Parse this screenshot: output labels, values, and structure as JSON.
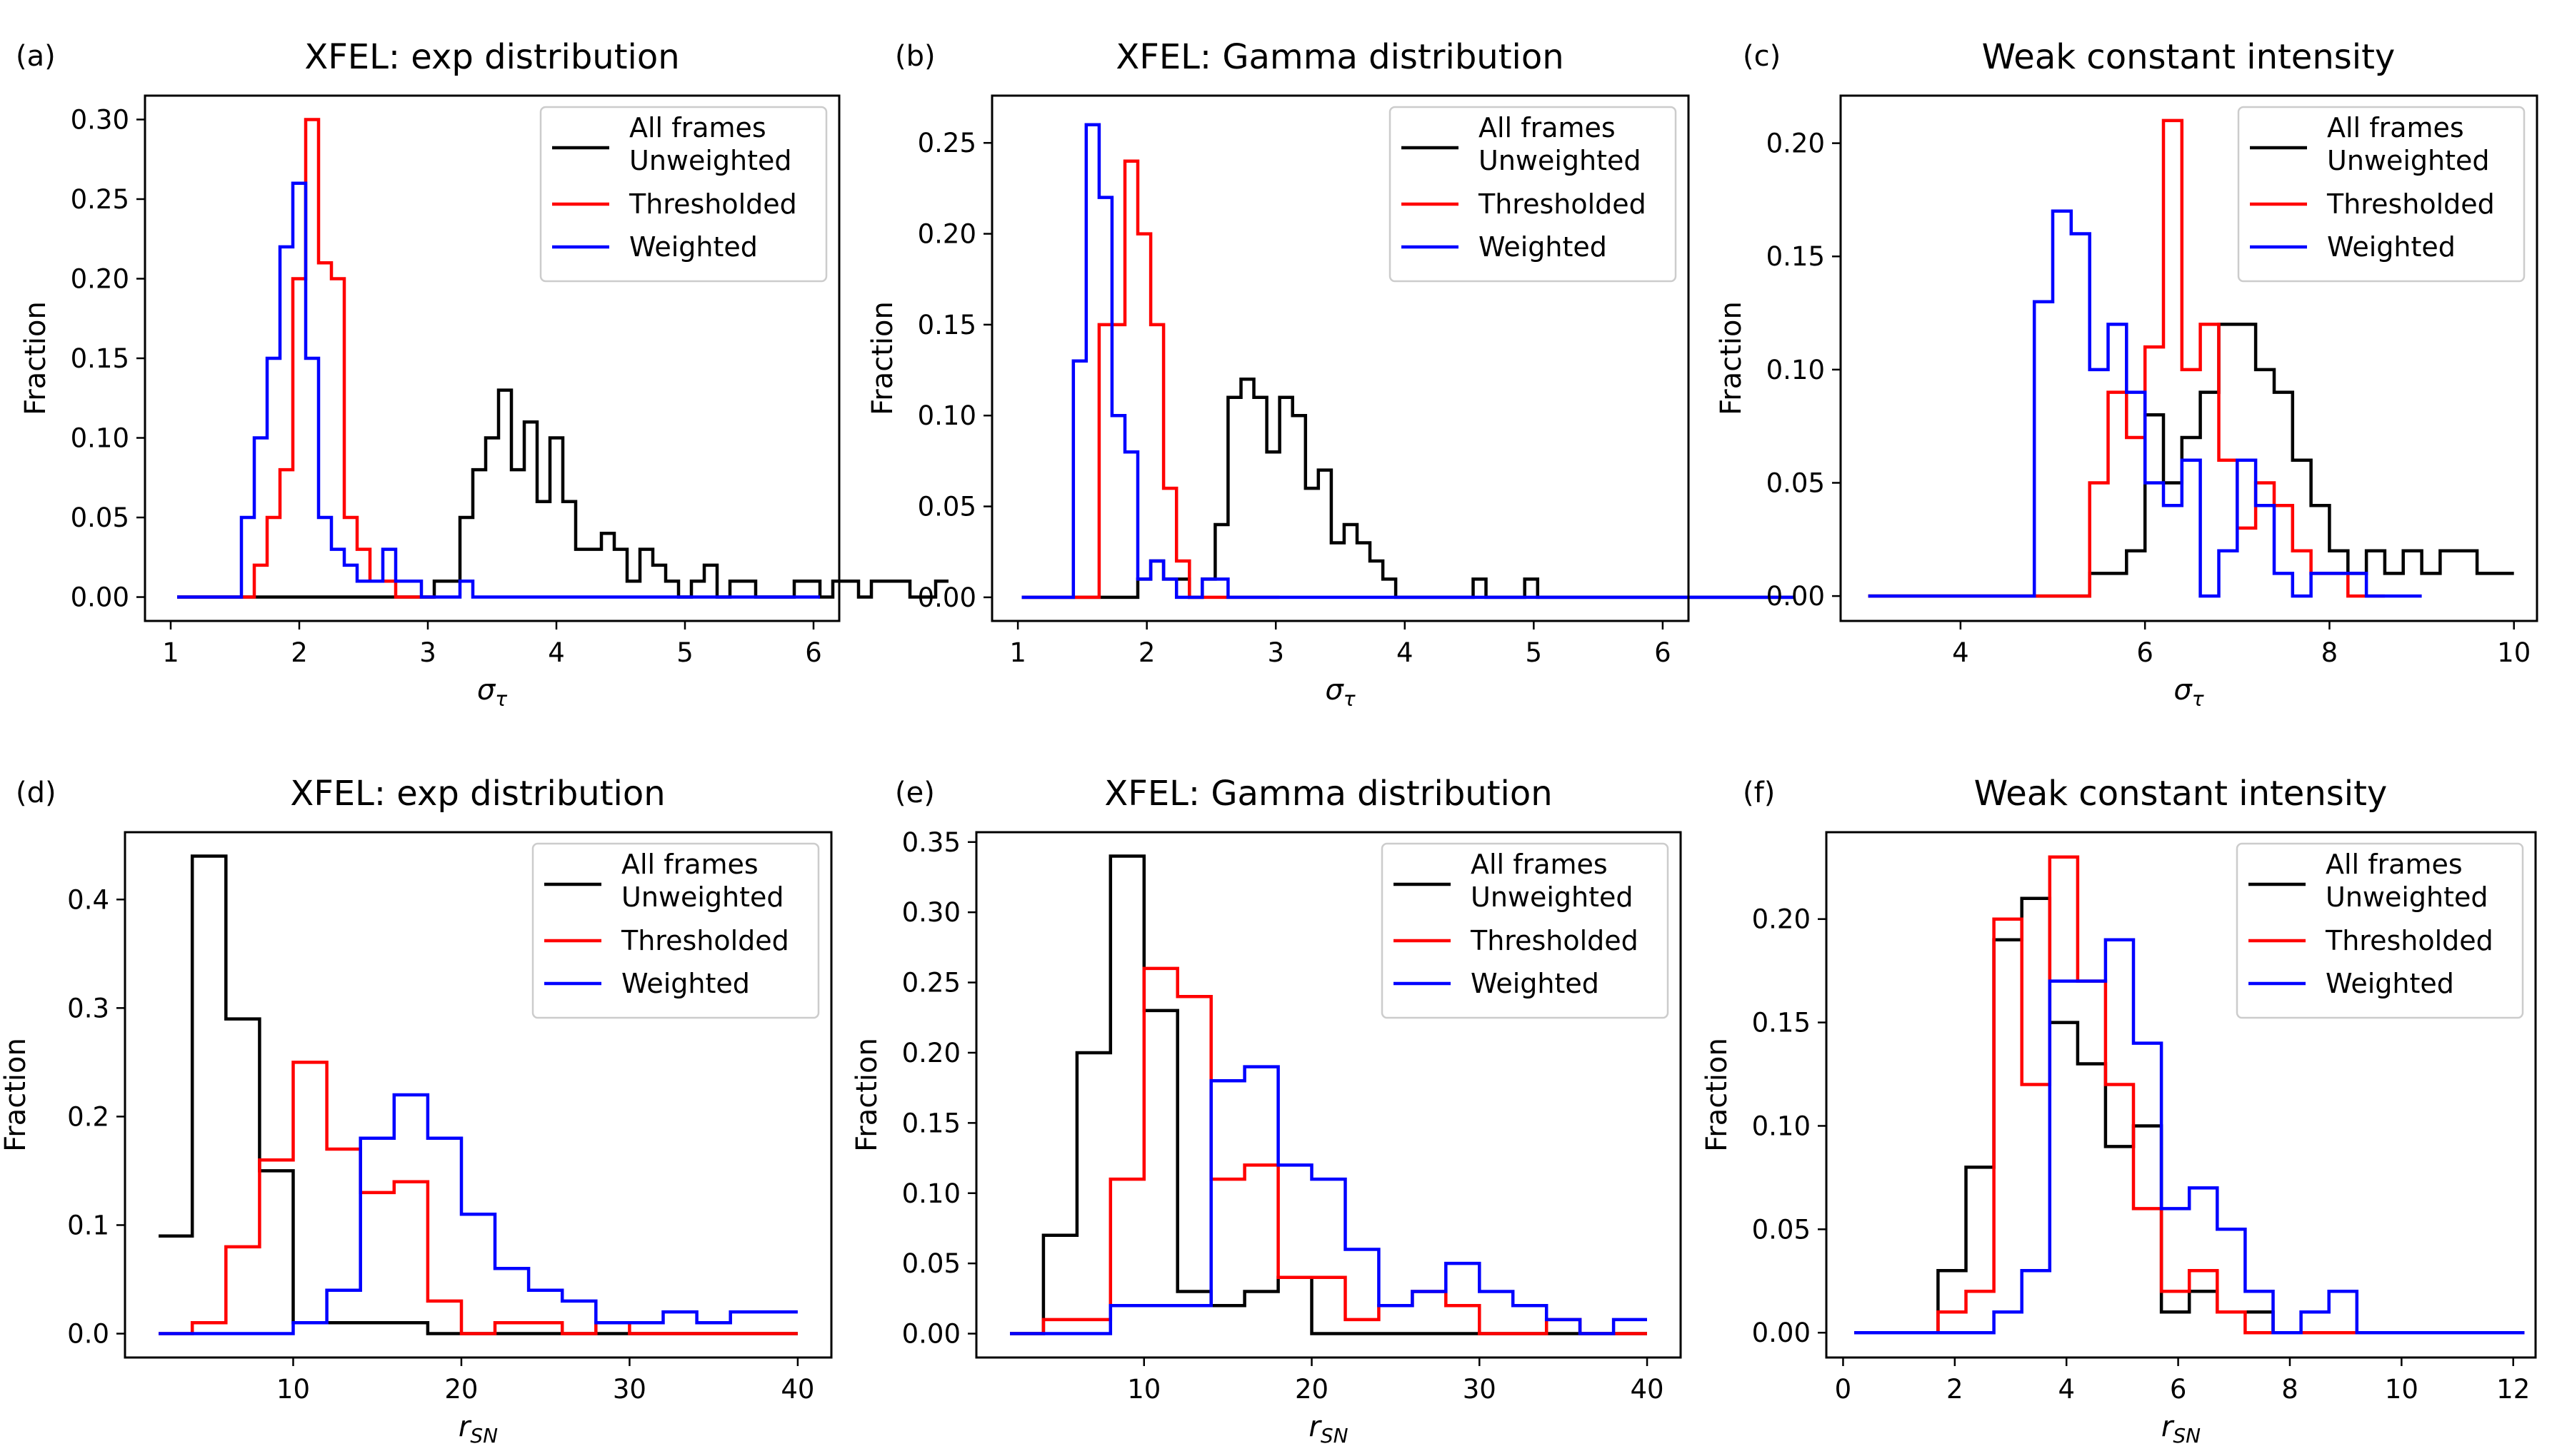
{
  "colors": {
    "all": "#000000",
    "thresholded": "#ff0000",
    "weighted": "#0000ff"
  },
  "chart_data": [
    {
      "label": "(a)",
      "type": "histogram-step",
      "title": "XFEL: exp distribution",
      "xlabel": "σ_τ",
      "ylabel": "Fraction",
      "xlim": [
        0.8,
        6.2
      ],
      "ylim": [
        -0.015,
        0.315
      ],
      "xticks": [
        1,
        2,
        3,
        4,
        5,
        6
      ],
      "xtick_labels": [
        "1",
        "2",
        "3",
        "4",
        "5",
        "6"
      ],
      "yticks": [
        0.0,
        0.05,
        0.1,
        0.15,
        0.2,
        0.25,
        0.3
      ],
      "ytick_labels": [
        "0.00",
        "0.05",
        "0.10",
        "0.15",
        "0.20",
        "0.25",
        "0.30"
      ],
      "legend_labels": [
        "All frames\nUnweighted",
        "Thresholded",
        "Weighted"
      ],
      "series": [
        {
          "name": "All frames Unweighted",
          "key": "all",
          "x_start": 1.05,
          "bin_width": 0.1,
          "values": [
            0,
            0,
            0,
            0,
            0,
            0,
            0,
            0,
            0,
            0,
            0,
            0,
            0,
            0,
            0,
            0,
            0,
            0,
            0,
            0,
            0.01,
            0.01,
            0.05,
            0.08,
            0.1,
            0.13,
            0.08,
            0.11,
            0.06,
            0.1,
            0.06,
            0.03,
            0.03,
            0.04,
            0.03,
            0.01,
            0.03,
            0.02,
            0.01,
            0,
            0.01,
            0.02,
            0,
            0.01,
            0.01,
            0,
            0,
            0,
            0.01,
            0.01,
            0,
            0.01,
            0.01,
            0,
            0.01,
            0.01,
            0.01,
            0,
            0,
            0.01
          ]
        },
        {
          "name": "Thresholded",
          "key": "thresholded",
          "x_start": 1.05,
          "bin_width": 0.1,
          "values": [
            0,
            0,
            0,
            0,
            0,
            0,
            0.02,
            0.05,
            0.08,
            0.2,
            0.3,
            0.21,
            0.2,
            0.05,
            0.03,
            0.01,
            0.01,
            0,
            0,
            0
          ]
        },
        {
          "name": "Weighted",
          "key": "weighted",
          "x_start": 1.05,
          "bin_width": 0.1,
          "values": [
            0,
            0,
            0,
            0,
            0,
            0.05,
            0.1,
            0.15,
            0.22,
            0.26,
            0.15,
            0.05,
            0.03,
            0.02,
            0.01,
            0.01,
            0.03,
            0.01,
            0.01,
            0,
            0,
            0,
            0.01,
            0,
            0,
            0,
            0,
            0,
            0,
            0,
            0,
            0,
            0,
            0,
            0,
            0,
            0,
            0,
            0,
            0,
            0,
            0,
            0,
            0,
            0,
            0,
            0,
            0,
            0,
            0
          ]
        }
      ]
    },
    {
      "label": "(b)",
      "type": "histogram-step",
      "title": "XFEL: Gamma distribution",
      "xlabel": "σ_τ",
      "ylabel": "Fraction",
      "xlim": [
        0.8,
        6.2
      ],
      "ylim": [
        -0.013,
        0.276
      ],
      "xticks": [
        1,
        2,
        3,
        4,
        5,
        6
      ],
      "xtick_labels": [
        "1",
        "2",
        "3",
        "4",
        "5",
        "6"
      ],
      "yticks": [
        0.0,
        0.05,
        0.1,
        0.15,
        0.2,
        0.25
      ],
      "ytick_labels": [
        "0.00",
        "0.05",
        "0.10",
        "0.15",
        "0.20",
        "0.25"
      ],
      "legend_labels": [
        "All frames\nUnweighted",
        "Thresholded",
        "Weighted"
      ],
      "series": [
        {
          "name": "All frames Unweighted",
          "key": "all",
          "x_start": 1.03,
          "bin_width": 0.1,
          "values": [
            0,
            0,
            0,
            0,
            0,
            0,
            0,
            0,
            0,
            0.01,
            0.02,
            0.01,
            0.01,
            0,
            0.01,
            0.04,
            0.11,
            0.12,
            0.11,
            0.08,
            0.11,
            0.1,
            0.06,
            0.07,
            0.03,
            0.04,
            0.03,
            0.02,
            0.01,
            0,
            0,
            0,
            0,
            0,
            0,
            0.01,
            0,
            0,
            0,
            0.01,
            0,
            0,
            0,
            0,
            0,
            0,
            0,
            0,
            0,
            0,
            0,
            0,
            0,
            0,
            0,
            0,
            0,
            0,
            0,
            0
          ]
        },
        {
          "name": "Thresholded",
          "key": "thresholded",
          "x_start": 1.03,
          "bin_width": 0.1,
          "values": [
            0,
            0,
            0,
            0,
            0,
            0,
            0.15,
            0.15,
            0.24,
            0.2,
            0.15,
            0.06,
            0.02,
            0,
            0,
            0,
            0,
            0,
            0,
            0
          ]
        },
        {
          "name": "Weighted",
          "key": "weighted",
          "x_start": 1.03,
          "bin_width": 0.1,
          "values": [
            0,
            0,
            0,
            0,
            0.13,
            0.26,
            0.22,
            0.1,
            0.08,
            0.01,
            0.02,
            0.01,
            0,
            0,
            0.01,
            0.01,
            0,
            0,
            0,
            0,
            0,
            0,
            0,
            0,
            0,
            0,
            0,
            0,
            0,
            0,
            0,
            0,
            0,
            0,
            0,
            0,
            0,
            0,
            0,
            0,
            0,
            0,
            0,
            0,
            0,
            0,
            0,
            0,
            0,
            0,
            0,
            0,
            0,
            0,
            0,
            0,
            0,
            0,
            0,
            0
          ]
        }
      ]
    },
    {
      "label": "(c)",
      "type": "histogram-step",
      "title": "Weak constant intensity",
      "xlabel": "σ_τ",
      "ylabel": "Fraction",
      "xlim": [
        2.7,
        10.25
      ],
      "ylim": [
        -0.011,
        0.221
      ],
      "xticks": [
        4,
        6,
        8,
        10
      ],
      "xtick_labels": [
        "4",
        "6",
        "8",
        "10"
      ],
      "yticks": [
        0.0,
        0.05,
        0.1,
        0.15,
        0.2
      ],
      "ytick_labels": [
        "0.00",
        "0.05",
        "0.10",
        "0.15",
        "0.20"
      ],
      "legend_labels": [
        "All frames\nUnweighted",
        "Thresholded",
        "Weighted"
      ],
      "series": [
        {
          "name": "All frames Unweighted",
          "key": "all",
          "x_start": 3.0,
          "bin_width": 0.2,
          "values": [
            0,
            0,
            0,
            0,
            0,
            0,
            0,
            0,
            0,
            0,
            0,
            0,
            0.01,
            0.01,
            0.02,
            0.08,
            0.05,
            0.07,
            0.09,
            0.12,
            0.12,
            0.1,
            0.09,
            0.06,
            0.04,
            0.02,
            0.01,
            0.02,
            0.01,
            0.02,
            0.01,
            0.02,
            0.02,
            0.01,
            0.01
          ]
        },
        {
          "name": "Thresholded",
          "key": "thresholded",
          "x_start": 3.0,
          "bin_width": 0.2,
          "values": [
            0,
            0,
            0,
            0,
            0,
            0,
            0,
            0,
            0,
            0,
            0,
            0,
            0.05,
            0.09,
            0.07,
            0.11,
            0.21,
            0.1,
            0.12,
            0.06,
            0.03,
            0.05,
            0.04,
            0.02,
            0.01,
            0.01,
            0,
            0
          ]
        },
        {
          "name": "Weighted",
          "key": "weighted",
          "x_start": 3.0,
          "bin_width": 0.2,
          "values": [
            0,
            0,
            0,
            0,
            0,
            0,
            0,
            0,
            0,
            0.13,
            0.17,
            0.16,
            0.1,
            0.12,
            0.09,
            0.05,
            0.04,
            0.06,
            0,
            0.02,
            0.06,
            0.04,
            0.01,
            0,
            0.01,
            0.01,
            0.01,
            0,
            0,
            0
          ]
        }
      ]
    },
    {
      "label": "(d)",
      "type": "histogram-step",
      "title": "XFEL: exp distribution",
      "xlabel": "r_SN",
      "ylabel": "Fraction",
      "xlim": [
        0,
        42
      ],
      "ylim": [
        -0.022,
        0.462
      ],
      "xticks": [
        10,
        20,
        30,
        40
      ],
      "xtick_labels": [
        "10",
        "20",
        "30",
        "40"
      ],
      "yticks": [
        0.0,
        0.1,
        0.2,
        0.3,
        0.4
      ],
      "ytick_labels": [
        "0.0",
        "0.1",
        "0.2",
        "0.3",
        "0.4"
      ],
      "legend_labels": [
        "All frames\nUnweighted",
        "Thresholded",
        "Weighted"
      ],
      "series": [
        {
          "name": "All frames Unweighted",
          "key": "all",
          "x_start": 2,
          "bin_width": 2,
          "values": [
            0.09,
            0.44,
            0.29,
            0.15,
            0.01,
            0.01,
            0.01,
            0.01,
            0,
            0,
            0,
            0,
            0,
            0,
            0,
            0,
            0,
            0,
            0
          ]
        },
        {
          "name": "Thresholded",
          "key": "thresholded",
          "x_start": 2,
          "bin_width": 2,
          "values": [
            0,
            0.01,
            0.08,
            0.16,
            0.25,
            0.17,
            0.13,
            0.14,
            0.03,
            0,
            0.01,
            0.01,
            0,
            0.01,
            0,
            0,
            0,
            0,
            0
          ]
        },
        {
          "name": "Weighted",
          "key": "weighted",
          "x_start": 2,
          "bin_width": 2,
          "values": [
            0,
            0,
            0,
            0,
            0.01,
            0.04,
            0.18,
            0.22,
            0.18,
            0.11,
            0.06,
            0.04,
            0.03,
            0.01,
            0.01,
            0.02,
            0.01,
            0.02,
            0.02
          ]
        }
      ]
    },
    {
      "label": "(e)",
      "type": "histogram-step",
      "title": "XFEL: Gamma distribution",
      "xlabel": "r_SN",
      "ylabel": "Fraction",
      "xlim": [
        0,
        42
      ],
      "ylim": [
        -0.017,
        0.357
      ],
      "xticks": [
        10,
        20,
        30,
        40
      ],
      "xtick_labels": [
        "10",
        "20",
        "30",
        "40"
      ],
      "yticks": [
        0.0,
        0.05,
        0.1,
        0.15,
        0.2,
        0.25,
        0.3,
        0.35
      ],
      "ytick_labels": [
        "0.00",
        "0.05",
        "0.10",
        "0.15",
        "0.20",
        "0.25",
        "0.30",
        "0.35"
      ],
      "legend_labels": [
        "All frames\nUnweighted",
        "Thresholded",
        "Weighted"
      ],
      "series": [
        {
          "name": "All frames Unweighted",
          "key": "all",
          "x_start": 2,
          "bin_width": 2,
          "values": [
            0,
            0.07,
            0.2,
            0.34,
            0.23,
            0.03,
            0.02,
            0.03,
            0.04,
            0,
            0,
            0,
            0,
            0,
            0,
            0,
            0,
            0,
            0
          ]
        },
        {
          "name": "Thresholded",
          "key": "thresholded",
          "x_start": 2,
          "bin_width": 2,
          "values": [
            0,
            0.01,
            0.01,
            0.11,
            0.26,
            0.24,
            0.11,
            0.12,
            0.04,
            0.04,
            0.01,
            0.02,
            0.03,
            0.02,
            0,
            0,
            0.01,
            0,
            0
          ]
        },
        {
          "name": "Weighted",
          "key": "weighted",
          "x_start": 2,
          "bin_width": 2,
          "values": [
            0,
            0,
            0,
            0.02,
            0.02,
            0.02,
            0.18,
            0.19,
            0.12,
            0.11,
            0.06,
            0.02,
            0.03,
            0.05,
            0.03,
            0.02,
            0.01,
            0,
            0.01
          ]
        }
      ]
    },
    {
      "label": "(f)",
      "type": "histogram-step",
      "title": "Weak constant intensity",
      "xlabel": "r_SN",
      "ylabel": "Fraction",
      "xlim": [
        -0.3,
        12.4
      ],
      "ylim": [
        -0.012,
        0.242
      ],
      "xticks": [
        0,
        2,
        4,
        6,
        8,
        10,
        12
      ],
      "xtick_labels": [
        "0",
        "2",
        "4",
        "6",
        "8",
        "10",
        "12"
      ],
      "yticks": [
        0.0,
        0.05,
        0.1,
        0.15,
        0.2
      ],
      "ytick_labels": [
        "0.00",
        "0.05",
        "0.10",
        "0.15",
        "0.20"
      ],
      "legend_labels": [
        "All frames\nUnweighted",
        "Thresholded",
        "Weighted"
      ],
      "series": [
        {
          "name": "All frames Unweighted",
          "key": "all",
          "x_start": 0.2,
          "bin_width": 0.5,
          "values": [
            0,
            0,
            0,
            0.03,
            0.08,
            0.19,
            0.21,
            0.15,
            0.13,
            0.09,
            0.1,
            0.01,
            0.02,
            0.01,
            0.01,
            0,
            0,
            0,
            0,
            0,
            0,
            0,
            0,
            0
          ]
        },
        {
          "name": "Thresholded",
          "key": "thresholded",
          "x_start": 0.2,
          "bin_width": 0.5,
          "values": [
            0,
            0,
            0,
            0.01,
            0.02,
            0.2,
            0.12,
            0.23,
            0.17,
            0.12,
            0.06,
            0.02,
            0.03,
            0.01,
            0,
            0,
            0,
            0,
            0,
            0,
            0,
            0,
            0,
            0
          ]
        },
        {
          "name": "Weighted",
          "key": "weighted",
          "x_start": 0.2,
          "bin_width": 0.5,
          "values": [
            0,
            0,
            0,
            0,
            0,
            0.01,
            0.03,
            0.17,
            0.17,
            0.19,
            0.14,
            0.06,
            0.07,
            0.05,
            0.02,
            0,
            0.01,
            0.02,
            0,
            0,
            0,
            0,
            0,
            0
          ]
        }
      ]
    }
  ]
}
